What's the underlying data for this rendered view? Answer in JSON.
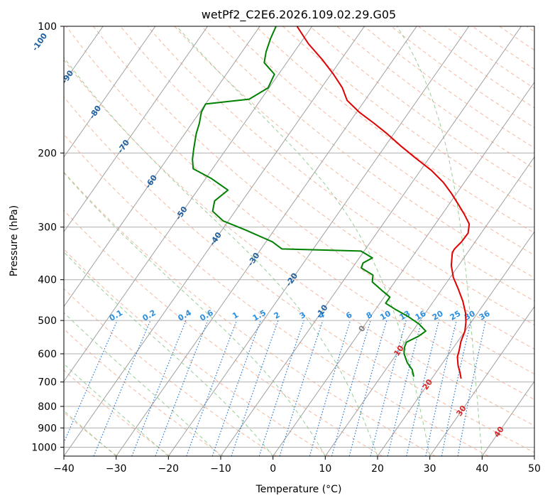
{
  "chart_data": {
    "type": "line",
    "title": "wetPf2_C2E6.2026.109.02.29.G05",
    "xlabel": "Temperature (°C)",
    "ylabel": "Pressure (hPa)",
    "xlim": [
      -40,
      50
    ],
    "ylim": [
      1050,
      100
    ],
    "y_scale": "log",
    "skew": "skew-T log-p",
    "grid": true,
    "x_ticks": [
      -40,
      -30,
      -20,
      -10,
      0,
      10,
      20,
      30,
      40,
      50
    ],
    "y_ticks": [
      100,
      200,
      300,
      400,
      500,
      600,
      700,
      800,
      900,
      1000
    ],
    "colors": {
      "temperature": "#e00000",
      "dewpoint": "#008000",
      "isotherms": "#a0a0a0",
      "dry_adiabats": "#f0a080",
      "moist_adiabats": "#80c080",
      "mixing_ratio": "#1f77d4",
      "isotherm_label_cold": "#1f5fa0",
      "isotherm_label_warm": "#d62728",
      "isotherm_label_zero": "#808080",
      "mixing_label": "#2a8fe0"
    },
    "series": [
      {
        "name": "",
        "role": "temperature",
        "points": [
          {
            "p": 687,
            "t": 25.6
          },
          {
            "p": 665,
            "t": 24.6
          },
          {
            "p": 640,
            "t": 23.3
          },
          {
            "p": 610,
            "t": 22.0
          },
          {
            "p": 590,
            "t": 21.5
          },
          {
            "p": 560,
            "t": 20.6
          },
          {
            "p": 530,
            "t": 20.0
          },
          {
            "p": 505,
            "t": 19.0
          },
          {
            "p": 480,
            "t": 17.7
          },
          {
            "p": 450,
            "t": 15.6
          },
          {
            "p": 420,
            "t": 13.0
          },
          {
            "p": 395,
            "t": 10.6
          },
          {
            "p": 370,
            "t": 8.6
          },
          {
            "p": 345,
            "t": 7.1
          },
          {
            "p": 338,
            "t": 7.0
          },
          {
            "p": 325,
            "t": 7.4
          },
          {
            "p": 310,
            "t": 7.5
          },
          {
            "p": 295,
            "t": 6.5
          },
          {
            "p": 280,
            "t": 4.3
          },
          {
            "p": 265,
            "t": 1.8
          },
          {
            "p": 250,
            "t": -0.9
          },
          {
            "p": 235,
            "t": -4.0
          },
          {
            "p": 220,
            "t": -7.9
          },
          {
            "p": 205,
            "t": -12.8
          },
          {
            "p": 192,
            "t": -17.2
          },
          {
            "p": 180,
            "t": -21.3
          },
          {
            "p": 170,
            "t": -25.2
          },
          {
            "p": 160,
            "t": -29.5
          },
          {
            "p": 150,
            "t": -33.4
          },
          {
            "p": 140,
            "t": -36.0
          },
          {
            "p": 130,
            "t": -39.5
          },
          {
            "p": 120,
            "t": -43.6
          },
          {
            "p": 110,
            "t": -48.4
          },
          {
            "p": 100,
            "t": -52.9
          }
        ]
      },
      {
        "name": "",
        "role": "dewpoint",
        "points": [
          {
            "p": 680,
            "t": 16.3
          },
          {
            "p": 655,
            "t": 15.1
          },
          {
            "p": 630,
            "t": 13.2
          },
          {
            "p": 600,
            "t": 11.4
          },
          {
            "p": 580,
            "t": 10.6
          },
          {
            "p": 563,
            "t": 10.3
          },
          {
            "p": 545,
            "t": 11.8
          },
          {
            "p": 530,
            "t": 12.5
          },
          {
            "p": 510,
            "t": 10.3
          },
          {
            "p": 490,
            "t": 7.3
          },
          {
            "p": 470,
            "t": 3.7
          },
          {
            "p": 455,
            "t": 1.1
          },
          {
            "p": 440,
            "t": 1.1
          },
          {
            "p": 425,
            "t": -1.2
          },
          {
            "p": 405,
            "t": -4.3
          },
          {
            "p": 390,
            "t": -5.1
          },
          {
            "p": 375,
            "t": -8.3
          },
          {
            "p": 365,
            "t": -8.6
          },
          {
            "p": 355,
            "t": -7.5
          },
          {
            "p": 342,
            "t": -10.6
          },
          {
            "p": 338,
            "t": -26.0
          },
          {
            "p": 325,
            "t": -28.8
          },
          {
            "p": 305,
            "t": -35.4
          },
          {
            "p": 290,
            "t": -41.0
          },
          {
            "p": 275,
            "t": -44.3
          },
          {
            "p": 260,
            "t": -45.3
          },
          {
            "p": 245,
            "t": -44.2
          },
          {
            "p": 230,
            "t": -48.9
          },
          {
            "p": 218,
            "t": -53.7
          },
          {
            "p": 207,
            "t": -55.1
          },
          {
            "p": 195,
            "t": -56.3
          },
          {
            "p": 180,
            "t": -57.8
          },
          {
            "p": 170,
            "t": -58.6
          },
          {
            "p": 160,
            "t": -59.7
          },
          {
            "p": 153,
            "t": -60.0
          },
          {
            "p": 149,
            "t": -52.3
          },
          {
            "p": 140,
            "t": -50.2
          },
          {
            "p": 130,
            "t": -50.8
          },
          {
            "p": 122,
            "t": -54.3
          },
          {
            "p": 115,
            "t": -55.4
          },
          {
            "p": 107,
            "t": -56.3
          },
          {
            "p": 100,
            "t": -56.9
          }
        ]
      }
    ],
    "isotherm_labels": [
      -100,
      -90,
      -80,
      -70,
      -60,
      -50,
      -40,
      -30,
      -20,
      -10,
      0,
      10,
      20,
      30,
      40
    ],
    "isotherm_label_pressure": [
      {
        "t": -100,
        "p": 109
      },
      {
        "t": -90,
        "p": 132
      },
      {
        "t": -80,
        "p": 160
      },
      {
        "t": -70,
        "p": 193
      },
      {
        "t": -60,
        "p": 234
      },
      {
        "t": -50,
        "p": 278
      },
      {
        "t": -40,
        "p": 320
      },
      {
        "t": -30,
        "p": 358
      },
      {
        "t": -20,
        "p": 400
      },
      {
        "t": -10,
        "p": 476
      },
      {
        "t": 0,
        "p": 523
      },
      {
        "t": 10,
        "p": 590
      },
      {
        "t": 20,
        "p": 710
      },
      {
        "t": 30,
        "p": 820
      },
      {
        "t": 40,
        "p": 920
      }
    ],
    "mixing_ratio_labels": [
      "0.1",
      "0.2",
      "0.4",
      "0.6",
      "1",
      "1.5",
      "2",
      "3",
      "4",
      "6",
      "8",
      "10",
      "13",
      "16",
      "20",
      "25",
      "30",
      "36"
    ],
    "mixing_ratio_values": [
      0.1,
      0.2,
      0.4,
      0.6,
      1,
      1.5,
      2,
      3,
      4,
      6,
      8,
      10,
      13,
      16,
      20,
      25,
      30,
      36
    ],
    "mixing_ratio_label_pressure": 500,
    "dry_adiabat_thetas_K": [
      210,
      220,
      230,
      240,
      250,
      260,
      270,
      280,
      290,
      300,
      310,
      320,
      330,
      340,
      350,
      360,
      370,
      380,
      390,
      400,
      410,
      420,
      430,
      440,
      450,
      460,
      470,
      480,
      490,
      500,
      510
    ],
    "moist_adiabat_start_temps": [
      -30,
      -20,
      -10,
      0,
      10,
      20,
      30,
      40
    ]
  }
}
